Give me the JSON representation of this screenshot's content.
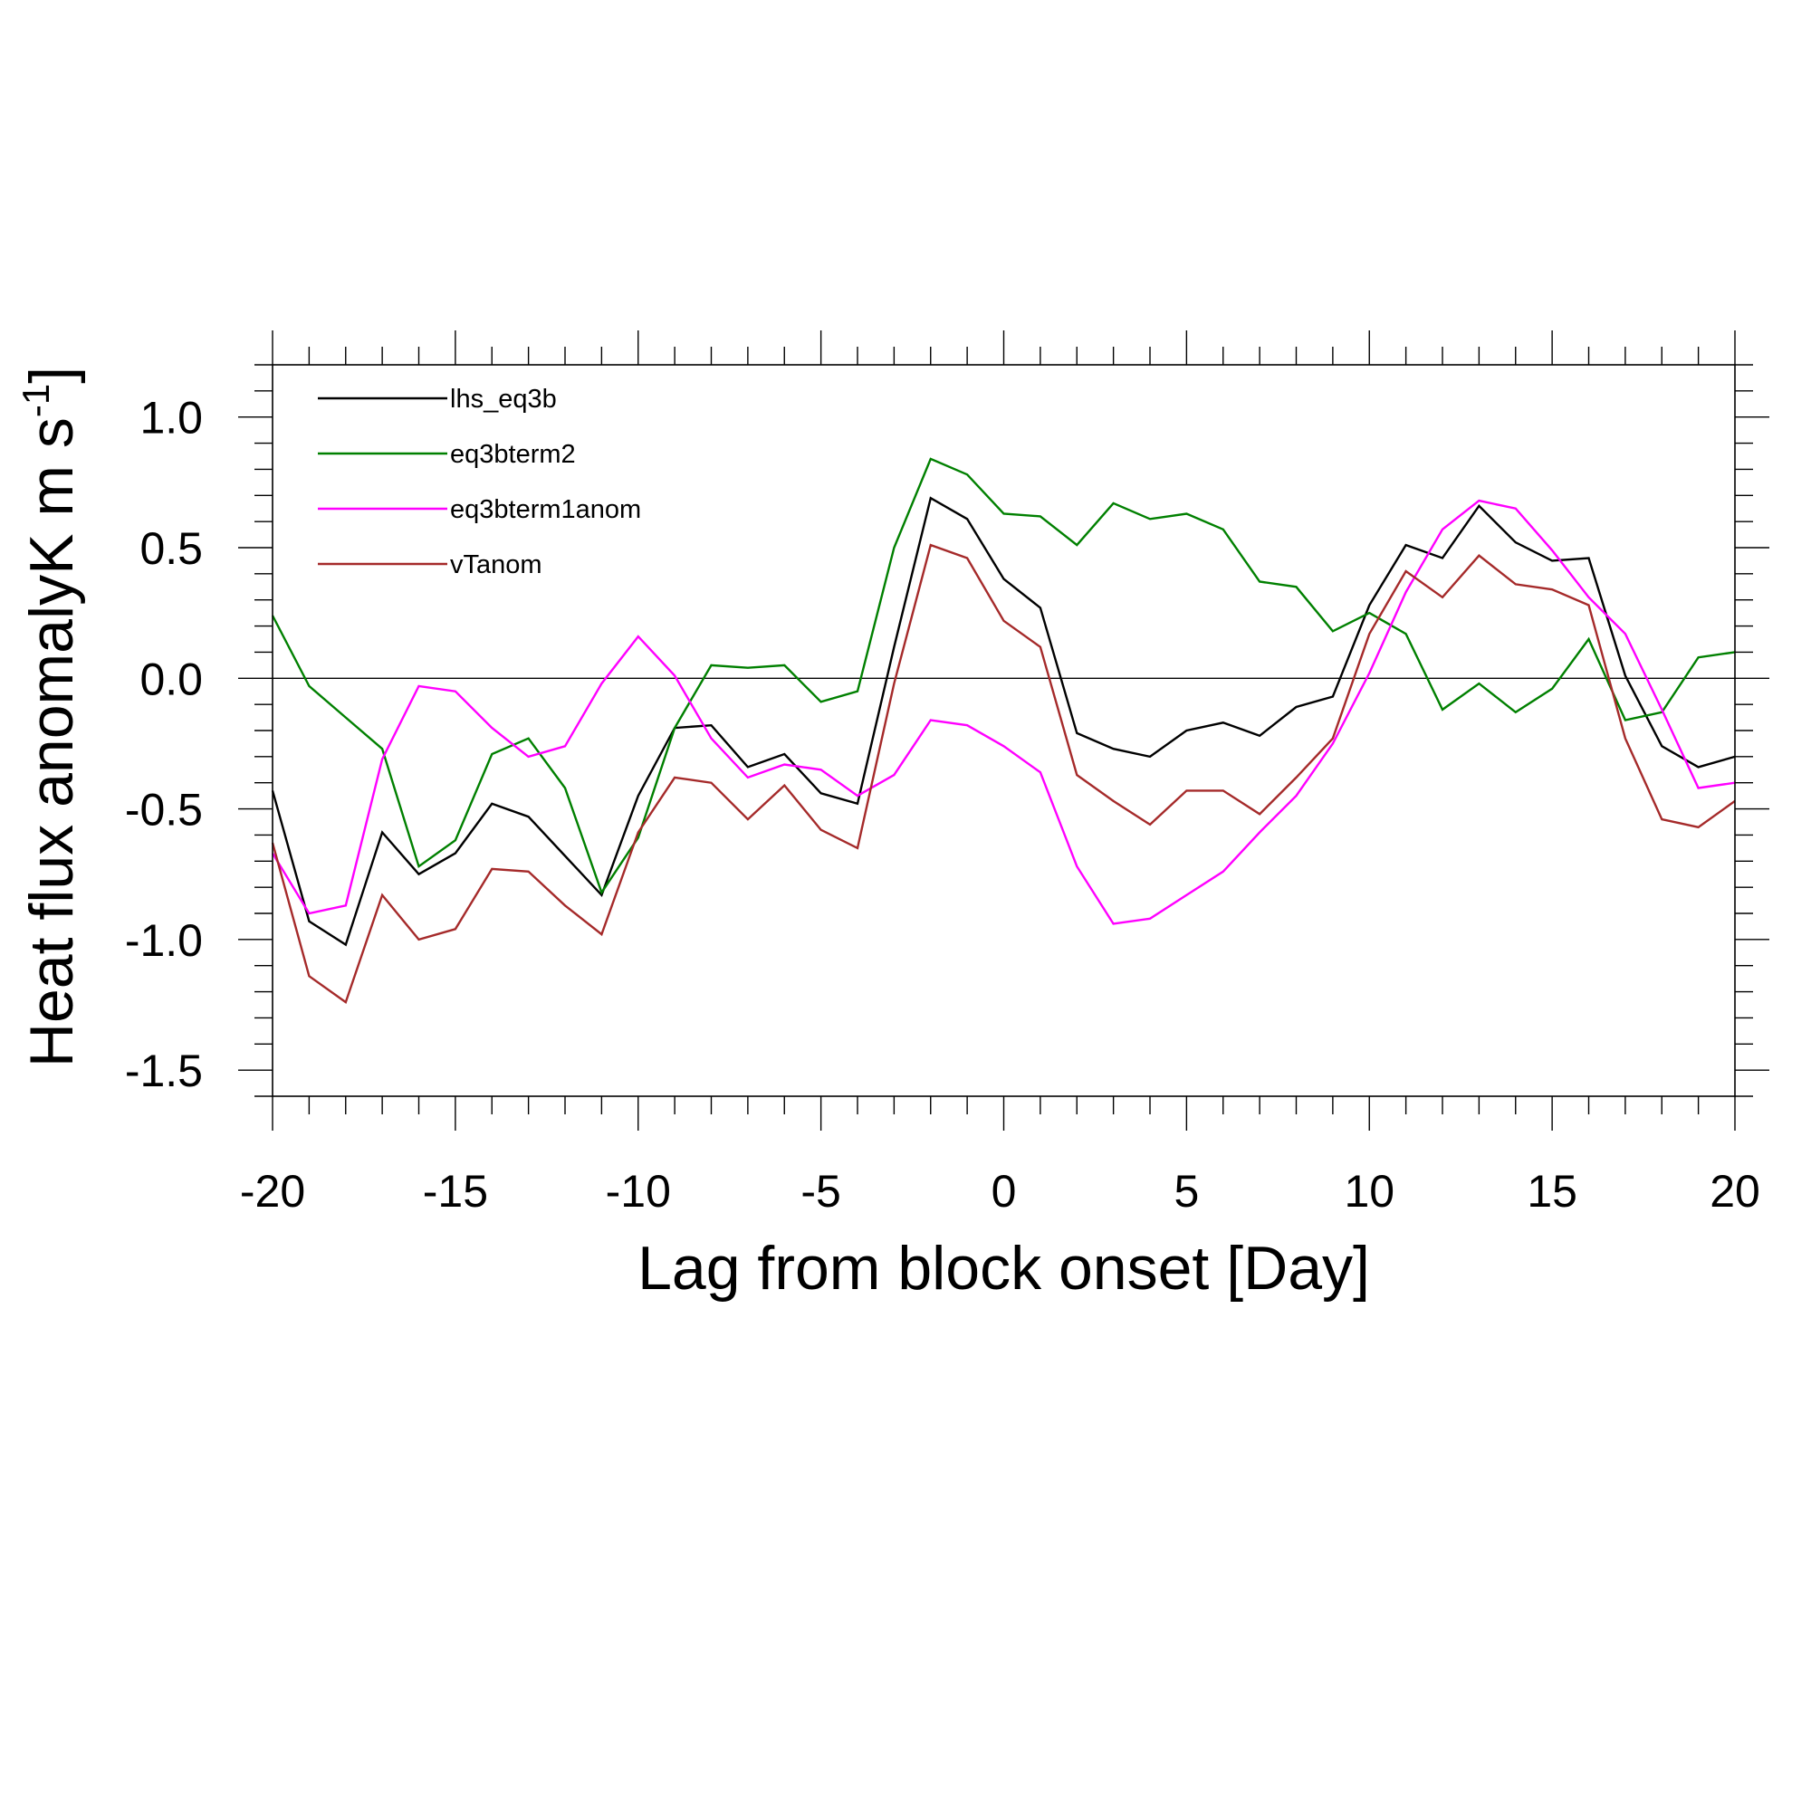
{
  "chart_data": {
    "type": "line",
    "xlabel": "Lag from block onset [Day]",
    "ylabel": "Heat flux anomalyK m s",
    "ylabel_superscript": "-1",
    "xlim": [
      -20,
      20
    ],
    "ylim": [
      -1.6,
      1.2
    ],
    "xticks": [
      -20,
      -15,
      -10,
      -5,
      0,
      5,
      10,
      15,
      20
    ],
    "xtick_labels": [
      "-20",
      "-15",
      "-10",
      "-5",
      "0",
      "5",
      "10",
      "15",
      "20"
    ],
    "yticks": [
      -1.5,
      -1.0,
      -0.5,
      0.0,
      0.5,
      1.0
    ],
    "ytick_labels": [
      "-1.5",
      "-1.0",
      "-0.5",
      "0.0",
      "0.5",
      "1.0"
    ],
    "zero_line": true,
    "grid": false,
    "legend_position": "top-left",
    "x": [
      -20,
      -19,
      -18,
      -17,
      -16,
      -15,
      -14,
      -13,
      -12,
      -11,
      -10,
      -9,
      -8,
      -7,
      -6,
      -5,
      -4,
      -3,
      -2,
      -1,
      0,
      1,
      2,
      3,
      4,
      5,
      6,
      7,
      8,
      9,
      10,
      11,
      12,
      13,
      14,
      15,
      16,
      17,
      18,
      19,
      20
    ],
    "series": [
      {
        "name": "lhs_eq3b",
        "color": "#000000",
        "values": [
          -0.43,
          -0.93,
          -1.02,
          -0.59,
          -0.75,
          -0.67,
          -0.48,
          -0.53,
          -0.68,
          -0.83,
          -0.45,
          -0.19,
          -0.18,
          -0.34,
          -0.29,
          -0.44,
          -0.48,
          0.12,
          0.69,
          0.61,
          0.38,
          0.27,
          -0.21,
          -0.27,
          -0.3,
          -0.2,
          -0.17,
          -0.22,
          -0.11,
          -0.07,
          0.28,
          0.51,
          0.46,
          0.66,
          0.52,
          0.45,
          0.46,
          0.01,
          -0.26,
          -0.34,
          -0.3
        ]
      },
      {
        "name": "eq3bterm2",
        "color": "#008000",
        "values": [
          0.24,
          -0.03,
          -0.15,
          -0.27,
          -0.72,
          -0.62,
          -0.29,
          -0.23,
          -0.42,
          -0.82,
          -0.61,
          -0.19,
          0.05,
          0.04,
          0.05,
          -0.09,
          -0.05,
          0.5,
          0.84,
          0.78,
          0.63,
          0.62,
          0.51,
          0.67,
          0.61,
          0.63,
          0.57,
          0.37,
          0.35,
          0.18,
          0.25,
          0.17,
          -0.12,
          -0.02,
          -0.13,
          -0.04,
          0.15,
          -0.16,
          -0.13,
          0.08,
          0.1
        ]
      },
      {
        "name": "eq3bterm1anom",
        "color": "#ff00ff",
        "values": [
          -0.67,
          -0.9,
          -0.87,
          -0.31,
          -0.03,
          -0.05,
          -0.19,
          -0.3,
          -0.26,
          -0.02,
          0.16,
          0.01,
          -0.23,
          -0.38,
          -0.33,
          -0.35,
          -0.45,
          -0.37,
          -0.16,
          -0.18,
          -0.26,
          -0.36,
          -0.72,
          -0.94,
          -0.92,
          -0.83,
          -0.74,
          -0.59,
          -0.45,
          -0.25,
          0.02,
          0.33,
          0.57,
          0.68,
          0.65,
          0.49,
          0.31,
          0.17,
          -0.12,
          -0.42,
          -0.4
        ]
      },
      {
        "name": "vTanom",
        "color": "#a52a2a",
        "values": [
          -0.63,
          -1.14,
          -1.24,
          -0.83,
          -1.0,
          -0.96,
          -0.73,
          -0.74,
          -0.87,
          -0.98,
          -0.59,
          -0.38,
          -0.4,
          -0.54,
          -0.41,
          -0.58,
          -0.65,
          -0.02,
          0.51,
          0.46,
          0.22,
          0.12,
          -0.37,
          -0.47,
          -0.56,
          -0.43,
          -0.43,
          -0.52,
          -0.38,
          -0.23,
          0.17,
          0.41,
          0.31,
          0.47,
          0.36,
          0.34,
          0.28,
          -0.23,
          -0.54,
          -0.57,
          -0.47
        ]
      }
    ]
  }
}
